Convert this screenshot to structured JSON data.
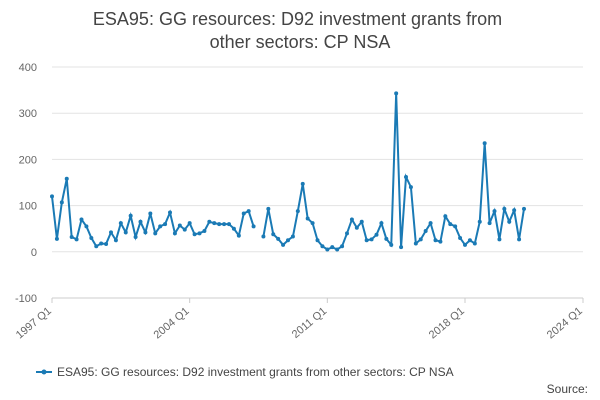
{
  "chart_data": {
    "type": "line",
    "title": "ESA95: GG resources: D92 investment grants from other sectors: CP NSA",
    "source": "Source:",
    "x": [
      "1997 Q1",
      "1997 Q2",
      "1997 Q3",
      "1997 Q4",
      "1998 Q1",
      "1998 Q2",
      "1998 Q3",
      "1998 Q4",
      "1999 Q1",
      "1999 Q2",
      "1999 Q3",
      "1999 Q4",
      "2000 Q1",
      "2000 Q2",
      "2000 Q3",
      "2000 Q4",
      "2001 Q1",
      "2001 Q2",
      "2001 Q3",
      "2001 Q4",
      "2002 Q1",
      "2002 Q2",
      "2002 Q3",
      "2002 Q4",
      "2003 Q1",
      "2003 Q2",
      "2003 Q3",
      "2003 Q4",
      "2004 Q1",
      "2004 Q2",
      "2004 Q3",
      "2004 Q4",
      "2005 Q1",
      "2005 Q2",
      "2005 Q3",
      "2005 Q4",
      "2006 Q1",
      "2006 Q2",
      "2006 Q3",
      "2006 Q4",
      "2007 Q1",
      "2007 Q2",
      "2007 Q3",
      "2007 Q4",
      "2008 Q1",
      "2008 Q2",
      "2008 Q3",
      "2008 Q4",
      "2009 Q1",
      "2009 Q2",
      "2009 Q3",
      "2009 Q4",
      "2010 Q1",
      "2010 Q2",
      "2010 Q3",
      "2010 Q4",
      "2011 Q1",
      "2011 Q2",
      "2011 Q3",
      "2011 Q4",
      "2012 Q1",
      "2012 Q2",
      "2012 Q3",
      "2012 Q4",
      "2013 Q1",
      "2013 Q2",
      "2013 Q3",
      "2013 Q4",
      "2014 Q1",
      "2014 Q2",
      "2014 Q3",
      "2014 Q4",
      "2015 Q1",
      "2015 Q2",
      "2015 Q3",
      "2015 Q4",
      "2016 Q1",
      "2016 Q2",
      "2016 Q3",
      "2016 Q4",
      "2017 Q1",
      "2017 Q2",
      "2017 Q3",
      "2017 Q4",
      "2018 Q1",
      "2018 Q2",
      "2018 Q3",
      "2018 Q4",
      "2019 Q1",
      "2019 Q2",
      "2019 Q3",
      "2019 Q4",
      "2020 Q1",
      "2020 Q2",
      "2020 Q3",
      "2020 Q4",
      "2021 Q1"
    ],
    "series": [
      {
        "name": "ESA95: GG resources: D92 investment grants from other sectors: CP NSA",
        "color": "#1a7ab5",
        "values": [
          120,
          28,
          107,
          158,
          32,
          27,
          70,
          55,
          30,
          12,
          18,
          17,
          42,
          25,
          62,
          42,
          78,
          32,
          65,
          42,
          83,
          40,
          55,
          60,
          85,
          40,
          57,
          48,
          62,
          38,
          40,
          45,
          65,
          62,
          60,
          60,
          60,
          50,
          35,
          83,
          88,
          55,
          null,
          33,
          93,
          38,
          28,
          15,
          25,
          33,
          88,
          147,
          72,
          62,
          25,
          12,
          5,
          10,
          5,
          12,
          40,
          70,
          52,
          65,
          25,
          27,
          37,
          62,
          28,
          15,
          343,
          10,
          162,
          140,
          18,
          27,
          45,
          62,
          25,
          22,
          77,
          60,
          55,
          30,
          15,
          25,
          18,
          65,
          235,
          62,
          88,
          27,
          93,
          65,
          90,
          27,
          93
        ]
      }
    ],
    "xlim": [
      "1997 Q1",
      "2024 Q1"
    ],
    "xticks": [
      "1997 Q1",
      "2004 Q1",
      "2011 Q1",
      "2018 Q1",
      "2024 Q1"
    ],
    "ylim": [
      -100,
      400
    ],
    "yticks": [
      -100,
      0,
      100,
      200,
      300,
      400
    ],
    "grid": true
  }
}
